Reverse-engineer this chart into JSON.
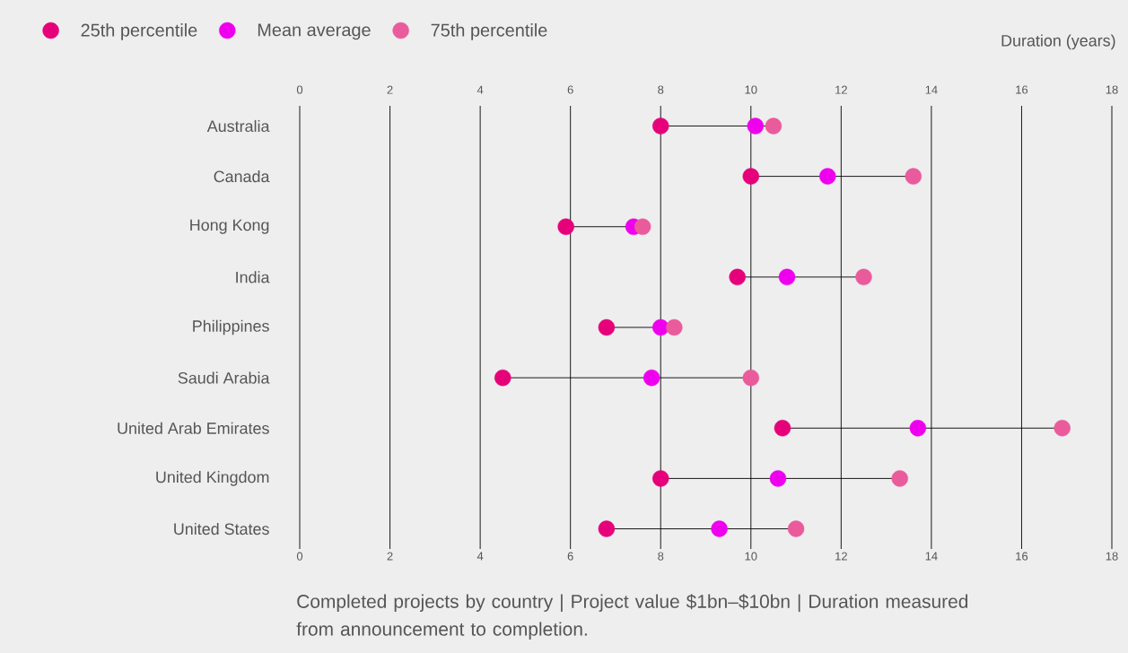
{
  "chart_data": {
    "type": "scatter",
    "orientation": "horizontal",
    "xlabel": "Duration (years)",
    "categories": [
      "Australia",
      "Canada",
      "Hong Kong",
      "India",
      "Philippines",
      "Saudi Arabia",
      "United Arab Emirates",
      "United Kingdom",
      "United States"
    ],
    "series": [
      {
        "name": "25th percentile",
        "color": "#e6007a",
        "values": [
          8.0,
          10.0,
          5.9,
          9.7,
          6.8,
          4.5,
          10.7,
          8.0,
          6.8
        ]
      },
      {
        "name": "Mean average",
        "color": "#ee00ee",
        "values": [
          10.1,
          11.7,
          7.4,
          10.8,
          8.0,
          7.8,
          13.7,
          10.6,
          9.3
        ]
      },
      {
        "name": "75th percentile",
        "color": "#ea5b9c",
        "values": [
          10.5,
          13.6,
          7.6,
          12.5,
          8.3,
          10.0,
          16.9,
          13.3,
          11.0
        ]
      }
    ],
    "xlim": [
      0,
      18
    ],
    "xticks": [
      0,
      2,
      4,
      6,
      8,
      10,
      12,
      14,
      16,
      18
    ],
    "x2lim": [
      0,
      18
    ],
    "x2ticks": [
      0,
      2,
      4,
      6,
      8,
      10,
      12,
      14,
      16,
      18
    ],
    "grid": "x",
    "legend": "top left",
    "marker": "circle",
    "annotations": [
      "Completed projects by country | Project value $1bn–$10bn | Duration measured from announcement to completion."
    ]
  }
}
